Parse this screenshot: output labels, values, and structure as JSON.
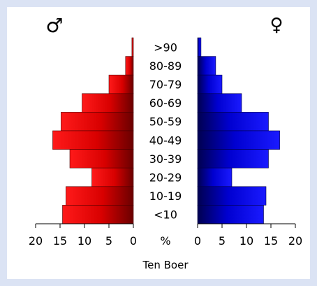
{
  "chart_data": {
    "type": "bar",
    "subtype": "population-pyramid",
    "title": "",
    "xlabel": "Ten Boer",
    "center_unit": "%",
    "categories": [
      ">90",
      "80-89",
      "70-79",
      "60-69",
      "50-59",
      "40-49",
      "30-39",
      "20-29",
      "10-19",
      "<10"
    ],
    "series": [
      {
        "name": "♂",
        "color": "#e00000",
        "values": [
          0.3,
          1.6,
          5.0,
          10.5,
          14.8,
          16.5,
          13.0,
          8.5,
          13.8,
          14.5
        ]
      },
      {
        "name": "♀",
        "color": "#0000e0",
        "values": [
          0.7,
          3.7,
          5.0,
          9.0,
          14.5,
          16.8,
          14.5,
          7.0,
          14.0,
          13.5
        ]
      }
    ],
    "xlim": [
      0,
      20
    ],
    "ticks_left": [
      "20",
      "15",
      "10",
      "5",
      "0"
    ],
    "ticks_right": [
      "0",
      "5",
      "10",
      "15",
      "20"
    ],
    "grid": false,
    "legend": "symbols above bars"
  }
}
